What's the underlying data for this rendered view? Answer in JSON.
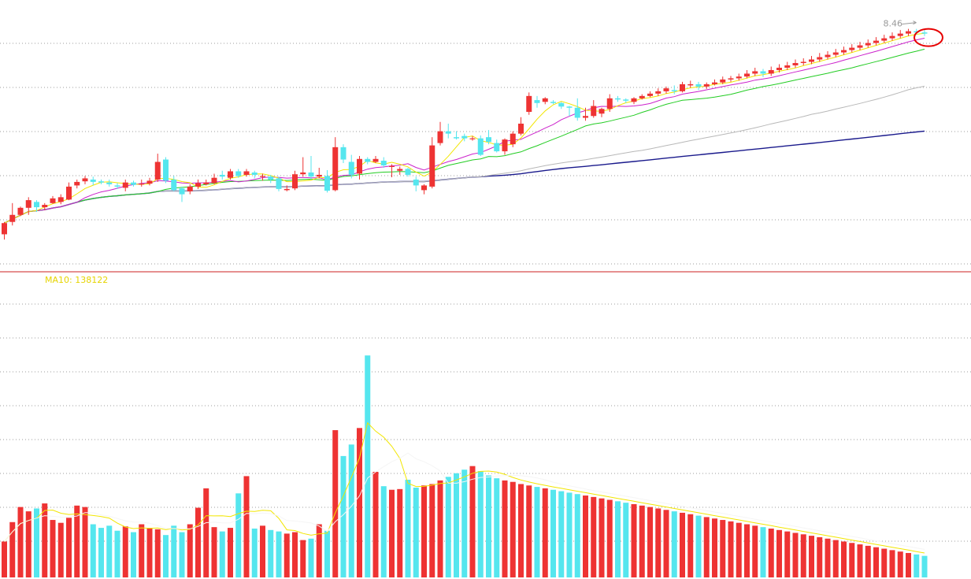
{
  "chart_data": [
    {
      "type": "candlestick",
      "title": "",
      "annotation_high": "8.46",
      "colors": {
        "up": "#ee3333",
        "down": "#55e6ee",
        "ma5": "#f2e600",
        "ma10": "#cc22cc",
        "ma20": "#22cc22",
        "ma60": "#b8b8b8",
        "ma120": "#1a1a8c",
        "highlight": "#e60000"
      },
      "ylim": [
        4.4,
        8.75
      ],
      "candles": [
        [
          4.97,
          5.16,
          5.18,
          4.88
        ],
        [
          5.18,
          5.3,
          5.5,
          5.12
        ],
        [
          5.3,
          5.42,
          5.44,
          5.28
        ],
        [
          5.42,
          5.55,
          5.6,
          5.3
        ],
        [
          5.52,
          5.43,
          5.55,
          5.35
        ],
        [
          5.43,
          5.47,
          5.5,
          5.38
        ],
        [
          5.5,
          5.58,
          5.62,
          5.49
        ],
        [
          5.52,
          5.6,
          5.65,
          5.48
        ],
        [
          5.56,
          5.78,
          5.85,
          5.55
        ],
        [
          5.8,
          5.86,
          5.9,
          5.75
        ],
        [
          5.87,
          5.92,
          5.96,
          5.82
        ],
        [
          5.9,
          5.86,
          5.95,
          5.8
        ],
        [
          5.87,
          5.85,
          5.9,
          5.82
        ],
        [
          5.85,
          5.82,
          5.9,
          5.78
        ],
        [
          5.8,
          5.78,
          5.84,
          5.74
        ],
        [
          5.76,
          5.85,
          5.9,
          5.7
        ],
        [
          5.85,
          5.81,
          5.88,
          5.78
        ],
        [
          5.82,
          5.83,
          5.9,
          5.78
        ],
        [
          5.83,
          5.88,
          5.93,
          5.8
        ],
        [
          5.9,
          6.2,
          6.34,
          5.86
        ],
        [
          6.24,
          5.88,
          6.28,
          5.84
        ],
        [
          5.9,
          5.72,
          5.96,
          5.7
        ],
        [
          5.75,
          5.65,
          5.78,
          5.52
        ],
        [
          5.7,
          5.78,
          5.82,
          5.65
        ],
        [
          5.78,
          5.84,
          5.9,
          5.74
        ],
        [
          5.82,
          5.85,
          5.9,
          5.8
        ],
        [
          5.84,
          5.93,
          6.0,
          5.82
        ],
        [
          5.98,
          5.95,
          6.05,
          5.9
        ],
        [
          5.93,
          6.04,
          6.08,
          5.9
        ],
        [
          6.04,
          5.96,
          6.08,
          5.93
        ],
        [
          5.98,
          6.04,
          6.08,
          5.95
        ],
        [
          6.02,
          5.98,
          6.05,
          5.92
        ],
        [
          5.96,
          5.96,
          6.0,
          5.88
        ],
        [
          5.95,
          5.9,
          5.98,
          5.84
        ],
        [
          5.92,
          5.74,
          5.95,
          5.7
        ],
        [
          5.72,
          5.74,
          5.8,
          5.7
        ],
        [
          5.75,
          5.99,
          6.05,
          5.72
        ],
        [
          5.99,
          6.02,
          6.28,
          5.95
        ],
        [
          6.02,
          5.95,
          6.3,
          5.9
        ],
        [
          5.95,
          5.98,
          6.1,
          5.92
        ],
        [
          5.96,
          5.71,
          6.06,
          5.68
        ],
        [
          5.72,
          6.45,
          6.62,
          5.7
        ],
        [
          6.45,
          6.24,
          6.5,
          6.18
        ],
        [
          6.2,
          5.98,
          6.32,
          5.92
        ],
        [
          6.0,
          6.25,
          6.3,
          5.9
        ],
        [
          6.25,
          6.2,
          6.28,
          6.16
        ],
        [
          6.2,
          6.25,
          6.3,
          6.18
        ],
        [
          6.22,
          6.14,
          6.28,
          6.1
        ],
        [
          6.12,
          6.13,
          6.16,
          5.94
        ],
        [
          6.05,
          6.08,
          6.12,
          5.98
        ],
        [
          6.08,
          5.98,
          6.1,
          5.95
        ],
        [
          5.9,
          5.8,
          5.95,
          5.7
        ],
        [
          5.72,
          5.8,
          5.82,
          5.65
        ],
        [
          5.78,
          6.48,
          6.62,
          5.75
        ],
        [
          6.52,
          6.72,
          6.88,
          6.48
        ],
        [
          6.72,
          6.68,
          6.85,
          6.6
        ],
        [
          6.62,
          6.6,
          6.72,
          6.58
        ],
        [
          6.64,
          6.6,
          6.68,
          6.55
        ],
        [
          6.6,
          6.6,
          6.64,
          6.56
        ],
        [
          6.6,
          6.32,
          6.65,
          6.3
        ],
        [
          6.62,
          6.54,
          6.74,
          6.5
        ],
        [
          6.52,
          6.38,
          6.58,
          6.36
        ],
        [
          6.38,
          6.58,
          6.6,
          6.32
        ],
        [
          6.5,
          6.68,
          6.72,
          6.45
        ],
        [
          6.68,
          6.85,
          6.96,
          6.65
        ],
        [
          7.05,
          7.32,
          7.38,
          7.0
        ],
        [
          7.25,
          7.2,
          7.32,
          7.12
        ],
        [
          7.22,
          7.28,
          7.3,
          7.18
        ],
        [
          7.22,
          7.2,
          7.25,
          7.18
        ],
        [
          7.2,
          7.14,
          7.22,
          7.1
        ],
        [
          7.14,
          7.12,
          7.15,
          6.98
        ],
        [
          7.12,
          6.95,
          7.28,
          6.9
        ],
        [
          6.95,
          6.98,
          7.12,
          6.9
        ],
        [
          6.98,
          7.15,
          7.25,
          6.95
        ],
        [
          7.02,
          7.1,
          7.12,
          6.96
        ],
        [
          7.1,
          7.28,
          7.35,
          7.05
        ],
        [
          7.28,
          7.26,
          7.32,
          7.22
        ],
        [
          7.26,
          7.24,
          7.28,
          7.2
        ],
        [
          7.22,
          7.28,
          7.3,
          7.18
        ],
        [
          7.28,
          7.32,
          7.35,
          7.26
        ],
        [
          7.32,
          7.36,
          7.4,
          7.3
        ],
        [
          7.36,
          7.4,
          7.45,
          7.32
        ],
        [
          7.4,
          7.45,
          7.48,
          7.36
        ],
        [
          7.42,
          7.4,
          7.5,
          7.35
        ],
        [
          7.4,
          7.52,
          7.56,
          7.38
        ],
        [
          7.5,
          7.52,
          7.58,
          7.46
        ],
        [
          7.52,
          7.48,
          7.56,
          7.42
        ],
        [
          7.48,
          7.52,
          7.55,
          7.44
        ],
        [
          7.52,
          7.55,
          7.6,
          7.5
        ],
        [
          7.55,
          7.6,
          7.65,
          7.52
        ],
        [
          7.6,
          7.62,
          7.66,
          7.56
        ],
        [
          7.62,
          7.65,
          7.7,
          7.58
        ],
        [
          7.65,
          7.7,
          7.76,
          7.62
        ],
        [
          7.7,
          7.74,
          7.8,
          7.66
        ],
        [
          7.74,
          7.7,
          7.78,
          7.64
        ],
        [
          7.7,
          7.76,
          7.82,
          7.66
        ],
        [
          7.76,
          7.8,
          7.86,
          7.72
        ],
        [
          7.8,
          7.84,
          7.9,
          7.76
        ],
        [
          7.84,
          7.88,
          7.94,
          7.8
        ],
        [
          7.88,
          7.9,
          7.96,
          7.84
        ],
        [
          7.9,
          7.94,
          8.0,
          7.86
        ],
        [
          7.94,
          7.98,
          8.05,
          7.9
        ],
        [
          7.98,
          8.02,
          8.08,
          7.94
        ],
        [
          8.02,
          8.06,
          8.12,
          7.98
        ],
        [
          8.06,
          8.1,
          8.16,
          8.02
        ],
        [
          8.1,
          8.14,
          8.2,
          8.06
        ],
        [
          8.14,
          8.18,
          8.24,
          8.1
        ],
        [
          8.18,
          8.22,
          8.28,
          8.14
        ],
        [
          8.22,
          8.26,
          8.32,
          8.18
        ],
        [
          8.26,
          8.3,
          8.36,
          8.22
        ],
        [
          8.3,
          8.34,
          8.4,
          8.26
        ],
        [
          8.34,
          8.38,
          8.44,
          8.3
        ],
        [
          8.38,
          8.42,
          8.46,
          8.34
        ],
        [
          8.42,
          8.4,
          8.46,
          8.36
        ],
        [
          8.4,
          8.38,
          8.44,
          8.34
        ]
      ]
    },
    {
      "type": "bar",
      "title": "MA10: 138122",
      "colors": {
        "up": "#ee3333",
        "down": "#55e6ee",
        "ma5": "#f2e600",
        "ma10": "#f5f5f5"
      },
      "ylim": [
        0,
        420000
      ],
      "volumes": [
        50000,
        77000,
        98000,
        92000,
        96000,
        103000,
        80000,
        76000,
        83000,
        100000,
        98000,
        74000,
        69000,
        72000,
        65000,
        71000,
        63000,
        74000,
        69000,
        67000,
        59000,
        72000,
        63000,
        74000,
        97000,
        124000,
        70000,
        64000,
        69000,
        117000,
        141000,
        68000,
        72000,
        66000,
        64000,
        61000,
        63000,
        52000,
        54000,
        74000,
        65000,
        205000,
        169000,
        185000,
        208000,
        309000,
        147000,
        127000,
        122000,
        123000,
        136000,
        125000,
        128000,
        130000,
        135000,
        140000,
        145000,
        150000,
        155000,
        148000,
        142000,
        138000,
        135000,
        133000,
        130000,
        128000,
        126000,
        124000,
        122000,
        120000,
        118000,
        116000,
        114000,
        112000,
        110000,
        108000,
        106000,
        104000,
        102000,
        100000,
        98000,
        96000,
        94000,
        92000,
        90000,
        88000,
        86000,
        84000,
        82000,
        80000,
        78000,
        76000,
        74000,
        72000,
        70000,
        68000,
        66000,
        64000,
        62000,
        60000,
        58000,
        56000,
        54000,
        52000,
        50000,
        48000,
        46000,
        44000,
        42000,
        40000,
        38000,
        36000,
        34000,
        32000,
        30000
      ]
    }
  ]
}
